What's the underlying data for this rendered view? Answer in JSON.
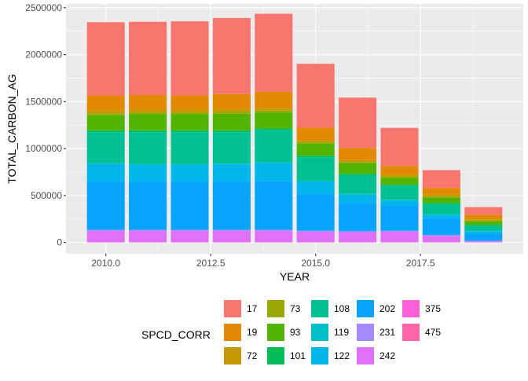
{
  "chart_data": {
    "type": "bar",
    "stacked": true,
    "xlabel": "YEAR",
    "ylabel": "TOTAL_CARBON_AG",
    "x_ticks": [
      "2010.0",
      "2012.5",
      "2015.0",
      "2017.5"
    ],
    "x_tick_values": [
      2010.0,
      2012.5,
      2015.0,
      2017.5
    ],
    "y_ticks": [
      "0",
      "500000",
      "1000000",
      "1500000",
      "2000000",
      "2500000"
    ],
    "y_tick_values": [
      0,
      500000,
      1000000,
      1500000,
      2000000,
      2500000
    ],
    "xlim": [
      2009.05,
      2019.95
    ],
    "ylim": [
      -120000,
      2540000
    ],
    "grid": true,
    "legend_title": "SPCD_CORR",
    "legend_position": "bottom",
    "x": [
      2010,
      2011,
      2012,
      2013,
      2014,
      2015,
      2016,
      2017,
      2018,
      2019
    ],
    "series": [
      {
        "name": "17",
        "color": "#F8766D",
        "values": [
          780000,
          780000,
          790000,
          810000,
          830000,
          680000,
          535000,
          405000,
          190000,
          80000
        ]
      },
      {
        "name": "19",
        "color": "#E38900",
        "values": [
          160000,
          155000,
          150000,
          160000,
          170000,
          135000,
          130000,
          95000,
          70000,
          50000
        ]
      },
      {
        "name": "72",
        "color": "#C49A00",
        "values": [
          30000,
          30000,
          30000,
          30000,
          30000,
          20000,
          20000,
          20000,
          20000,
          10000
        ]
      },
      {
        "name": "73",
        "color": "#99A800",
        "values": [
          20000,
          20000,
          20000,
          20000,
          20000,
          15000,
          15000,
          10000,
          10000,
          10000
        ]
      },
      {
        "name": "93",
        "color": "#53B400",
        "values": [
          160000,
          170000,
          170000,
          175000,
          170000,
          130000,
          110000,
          75000,
          60000,
          40000
        ]
      },
      {
        "name": "101",
        "color": "#00BC56",
        "values": [
          20000,
          20000,
          20000,
          20000,
          20000,
          15000,
          15000,
          10000,
          10000,
          5000
        ]
      },
      {
        "name": "108",
        "color": "#00C094",
        "values": [
          330000,
          340000,
          340000,
          335000,
          340000,
          250000,
          200000,
          150000,
          110000,
          60000
        ]
      },
      {
        "name": "119",
        "color": "#00BFC4",
        "values": [
          10000,
          10000,
          10000,
          10000,
          10000,
          8000,
          7000,
          5000,
          5000,
          3000
        ]
      },
      {
        "name": "122",
        "color": "#00B6EB",
        "values": [
          190000,
          180000,
          180000,
          185000,
          190000,
          135000,
          90000,
          55000,
          40000,
          25000
        ]
      },
      {
        "name": "202",
        "color": "#06A4FF",
        "values": [
          510000,
          510000,
          510000,
          510000,
          520000,
          390000,
          300000,
          270000,
          175000,
          75000
        ]
      },
      {
        "name": "231",
        "color": "#A58AFF",
        "values": [
          10000,
          10000,
          10000,
          10000,
          10000,
          10000,
          10000,
          10000,
          10000,
          5000
        ]
      },
      {
        "name": "242",
        "color": "#DF70F8",
        "values": [
          120000,
          120000,
          120000,
          120000,
          120000,
          110000,
          105000,
          110000,
          65000,
          10000
        ]
      },
      {
        "name": "375",
        "color": "#FB61D7",
        "values": [
          3000,
          3000,
          3000,
          3000,
          3000,
          3000,
          3000,
          3000,
          3000,
          2000
        ]
      },
      {
        "name": "475",
        "color": "#FF66A8",
        "values": [
          2000,
          2000,
          2000,
          2000,
          2000,
          2000,
          2000,
          2000,
          2000,
          1000
        ]
      }
    ]
  }
}
